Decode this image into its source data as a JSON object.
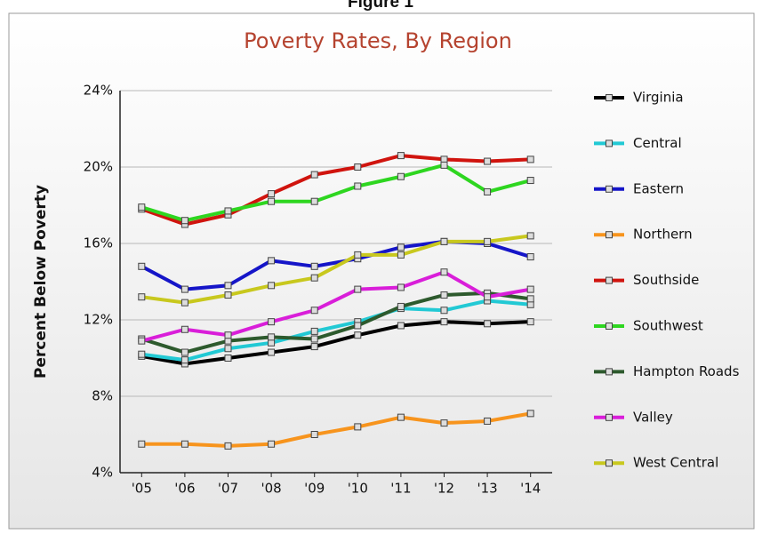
{
  "figure_label": "Figure 1",
  "chart_data": {
    "type": "line",
    "title": "Poverty Rates, By Region",
    "y_label": "Percent Below Poverty",
    "categories": [
      "'05",
      "'06",
      "'07",
      "'08",
      "'09",
      "'10",
      "'11",
      "'12",
      "'13",
      "'14"
    ],
    "ylim": [
      4,
      24
    ],
    "yticks": [
      {
        "value": 4,
        "label": "4%"
      },
      {
        "value": 8,
        "label": "8%"
      },
      {
        "value": 12,
        "label": "12%"
      },
      {
        "value": 16,
        "label": "16%"
      },
      {
        "value": 20,
        "label": "20%"
      },
      {
        "value": 24,
        "label": "24%"
      }
    ],
    "grid": true,
    "legend": "right",
    "series": [
      {
        "name": "Virginia",
        "color": "#000000",
        "values": [
          10.1,
          9.7,
          10.0,
          10.3,
          10.6,
          11.2,
          11.7,
          11.9,
          11.8,
          11.9
        ]
      },
      {
        "name": "Central",
        "color": "#22c9d4",
        "values": [
          10.2,
          9.9,
          10.5,
          10.8,
          11.4,
          11.9,
          12.6,
          12.5,
          13.0,
          12.8
        ]
      },
      {
        "name": "Eastern",
        "color": "#1515c8",
        "values": [
          14.8,
          13.6,
          13.8,
          15.1,
          14.8,
          15.2,
          15.8,
          16.1,
          16.0,
          15.3
        ]
      },
      {
        "name": "Northern",
        "color": "#f7941d",
        "values": [
          5.5,
          5.5,
          5.4,
          5.5,
          6.0,
          6.4,
          6.9,
          6.6,
          6.7,
          7.1
        ]
      },
      {
        "name": "Southside",
        "color": "#d0140e",
        "values": [
          17.8,
          17.0,
          17.5,
          18.6,
          19.6,
          20.0,
          20.6,
          20.4,
          20.3,
          20.4
        ]
      },
      {
        "name": "Southwest",
        "color": "#2ed620",
        "values": [
          17.9,
          17.2,
          17.7,
          18.2,
          18.2,
          19.0,
          19.5,
          20.1,
          18.7,
          19.3
        ]
      },
      {
        "name": "Hampton Roads",
        "color": "#2d5a2d",
        "values": [
          11.0,
          10.3,
          10.9,
          11.1,
          11.0,
          11.7,
          12.7,
          13.3,
          13.4,
          13.1
        ]
      },
      {
        "name": "Valley",
        "color": "#d91ed9",
        "values": [
          10.9,
          11.5,
          11.2,
          11.9,
          12.5,
          13.6,
          13.7,
          14.5,
          13.2,
          13.6
        ]
      },
      {
        "name": "West Central",
        "color": "#c8c81e",
        "values": [
          13.2,
          12.9,
          13.3,
          13.8,
          14.2,
          15.4,
          15.4,
          16.1,
          16.1,
          16.4
        ]
      }
    ]
  }
}
